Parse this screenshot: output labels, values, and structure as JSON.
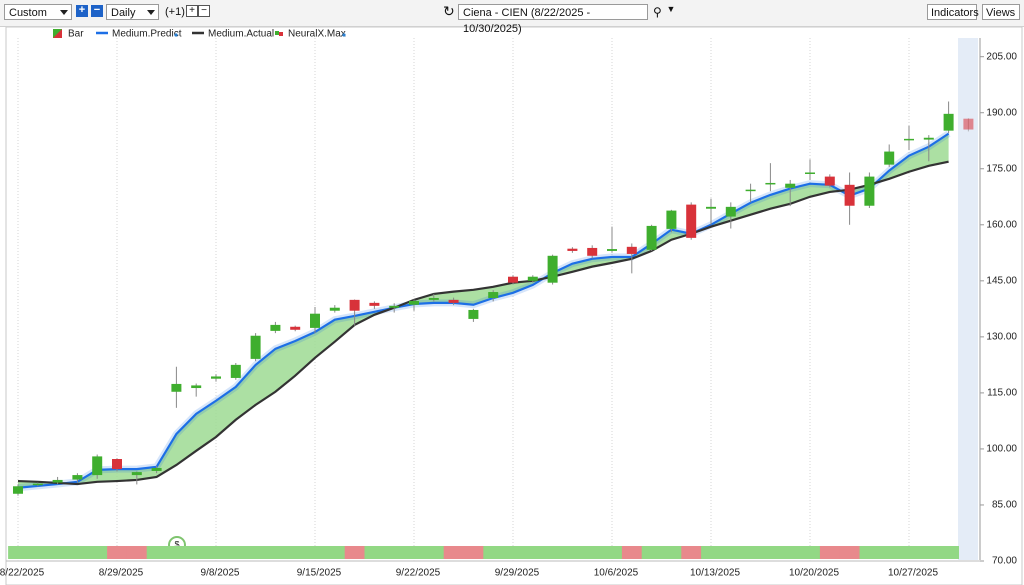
{
  "toolbar": {
    "range": "Custom",
    "period": "Daily",
    "offset": "(+1)",
    "symbol": "Ciena - CIEN (8/22/2025 - 10/30/2025)",
    "indicators": "Indicators",
    "views": "Views"
  },
  "chart_data": {
    "type": "candlestick",
    "categories": [
      "8/22/2025",
      null,
      null,
      null,
      null,
      "8/29/2025",
      null,
      null,
      null,
      null,
      "9/8/2025",
      null,
      null,
      null,
      null,
      "9/15/2025",
      null,
      null,
      null,
      null,
      "9/22/2025",
      null,
      null,
      null,
      null,
      "9/29/2025",
      null,
      null,
      null,
      null,
      "10/6/2025",
      null,
      null,
      null,
      null,
      "10/13/2025",
      null,
      null,
      null,
      null,
      "10/20/2025",
      null,
      null,
      null,
      null,
      "10/27/2025",
      null,
      null,
      null
    ],
    "candles": {
      "name": "Bar",
      "up_color": "#3fae2e",
      "down_color": "#d8323a",
      "open": [
        88,
        90.5,
        91,
        91.8,
        93,
        97.3,
        93,
        94.1,
        115.3,
        116.3,
        118.8,
        119,
        124.1,
        131.6,
        132.7,
        132.4,
        137,
        139.9,
        139.1,
        137.8,
        138.6,
        139.9,
        139.9,
        134.8,
        140.4,
        146.1,
        145,
        144.5,
        153.6,
        153.8,
        153,
        154.1,
        153.3,
        158.9,
        165.4,
        164.3,
        162.2,
        169,
        170.8,
        169.9,
        173.7,
        172.9,
        170.7,
        165.1,
        176.1,
        182.6,
        182.8,
        185.2,
        188.4
      ],
      "high": [
        90.5,
        91,
        92.5,
        93.5,
        98.5,
        97.5,
        94,
        95.5,
        122,
        117.5,
        120,
        123,
        131,
        134,
        133,
        138,
        138.5,
        140,
        139.5,
        139,
        140,
        141.5,
        140.5,
        137.5,
        142.5,
        146.5,
        146.5,
        152,
        154,
        154.5,
        159.5,
        155,
        160,
        164,
        166,
        167,
        166,
        171,
        176.5,
        172,
        177.5,
        173.5,
        174,
        174,
        181.5,
        186.5,
        184,
        193,
        188.5
      ],
      "low": [
        87.5,
        90,
        90.5,
        91,
        92,
        94,
        90.5,
        93.5,
        111,
        114,
        118,
        118.5,
        123.5,
        131,
        131.5,
        131,
        136.5,
        133,
        137.5,
        136.5,
        137,
        139.5,
        138.5,
        134,
        139.5,
        144,
        144.5,
        144,
        152.5,
        151,
        152.5,
        147,
        153,
        158,
        156,
        160,
        159,
        166,
        169,
        165,
        172,
        170,
        160,
        164.5,
        175.5,
        180,
        177,
        184.5,
        185
      ],
      "close": [
        90,
        90.7,
        91.7,
        93,
        98,
        94.6,
        93.8,
        94.9,
        117.4,
        117,
        119.4,
        122.5,
        130.3,
        133.2,
        131.9,
        136.2,
        137.8,
        137,
        138.3,
        138.3,
        139.6,
        140.4,
        139.1,
        137.2,
        142,
        144.5,
        146.1,
        151.7,
        153,
        151.7,
        153.5,
        152.2,
        159.7,
        163.8,
        156.5,
        164.8,
        164.8,
        169.4,
        171.2,
        171,
        174,
        170.5,
        165.1,
        172.9,
        179.6,
        183,
        183.3,
        189.7,
        185.5
      ]
    },
    "series": [
      {
        "name": "Medium.Predict",
        "color": "#1d6fe6",
        "values": [
          89.6,
          90.1,
          90.6,
          91.2,
          94.4,
          94.6,
          94.6,
          95.2,
          104,
          109.4,
          112.9,
          116.6,
          122.5,
          126.8,
          128.9,
          131.3,
          134.6,
          135.6,
          136.7,
          137.8,
          138.8,
          139.1,
          139.1,
          138.6,
          140.4,
          141.8,
          143.9,
          147.1,
          149.6,
          150.9,
          151.4,
          151.4,
          154.9,
          158.7,
          157.6,
          160,
          163,
          165.9,
          168,
          169.7,
          171,
          170.7,
          167.8,
          169.7,
          174.5,
          178.5,
          180.9,
          184.4,
          null
        ]
      },
      {
        "name": "Medium.Actual",
        "color": "#333333",
        "values": [
          91.4,
          91.2,
          90.9,
          90.6,
          91.2,
          91.4,
          91.7,
          92.5,
          95.7,
          99.5,
          103.2,
          107.8,
          111.8,
          115.3,
          119.6,
          124.4,
          128.7,
          133.2,
          135.9,
          137.8,
          139.9,
          141.5,
          142.1,
          142.6,
          143.4,
          144.5,
          145,
          146.1,
          147.4,
          148.8,
          149.8,
          150.9,
          153,
          156,
          157.6,
          159.5,
          161.1,
          162.7,
          164.3,
          165.6,
          167.5,
          168.8,
          169.4,
          170.7,
          172.3,
          174.2,
          175.8,
          176.9,
          null
        ]
      }
    ],
    "fill_color": "#9ddb93",
    "indicators": [
      "NeuralX.Max"
    ],
    "signals": [
      1,
      1,
      1,
      1,
      1,
      -1,
      -1,
      1,
      1,
      1,
      1,
      1,
      1,
      1,
      1,
      1,
      1,
      -1,
      1,
      1,
      1,
      1,
      -1,
      -1,
      1,
      1,
      1,
      1,
      1,
      1,
      1,
      -1,
      1,
      1,
      -1,
      1,
      1,
      1,
      1,
      1,
      1,
      -1,
      -1,
      1,
      1,
      1,
      1,
      1,
      null
    ],
    "signal_up_color": "#92d884",
    "signal_down_color": "#e8898c",
    "ylim": [
      70,
      210
    ],
    "yticks": [
      {
        "value": 70,
        "label": "70.00"
      },
      {
        "value": 85,
        "label": "85.00"
      },
      {
        "value": 100,
        "label": "100.00"
      },
      {
        "value": 115,
        "label": "115.00"
      },
      {
        "value": 130,
        "label": "130.00"
      },
      {
        "value": 145,
        "label": "145.00"
      },
      {
        "value": 160,
        "label": "160.00"
      },
      {
        "value": 175,
        "label": "175.00"
      },
      {
        "value": 190,
        "label": "190.00"
      },
      {
        "value": 205,
        "label": "205.00"
      }
    ],
    "grid": true
  }
}
